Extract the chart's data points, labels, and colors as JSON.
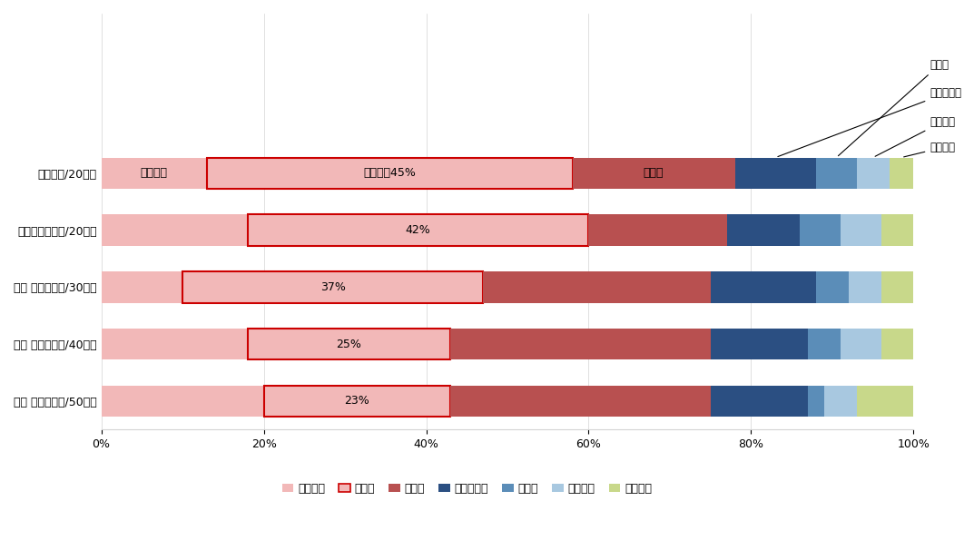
{
  "categories": [
    "新社会人/20歳代",
    "その他の社会人/20歳代",
    "その 他の社会人/30歳代",
    "その 他の社会人/40歳代",
    "その 他の社会人/50歳代"
  ],
  "segments": [
    "キッチン",
    "トイレ",
    "お風呂",
    "窓・サッシ",
    "洗面所",
    "リビング",
    "ベランダ"
  ],
  "values": [
    [
      13,
      45,
      20,
      10,
      5,
      4,
      3
    ],
    [
      18,
      42,
      17,
      9,
      5,
      5,
      4
    ],
    [
      10,
      37,
      28,
      13,
      4,
      4,
      4
    ],
    [
      18,
      25,
      32,
      12,
      4,
      5,
      4
    ],
    [
      20,
      23,
      32,
      12,
      2,
      4,
      7
    ]
  ],
  "seg_colors": [
    "#f2b8b8",
    "#f2b8b8",
    "#b85050",
    "#2b4f82",
    "#5b8db8",
    "#a8c8e0",
    "#c8d88a"
  ],
  "toilet_border": "#cc0000",
  "bar_height": 0.55,
  "xlim": [
    0,
    100
  ],
  "xticks": [
    0,
    20,
    40,
    60,
    80,
    100
  ],
  "xticklabels": [
    "0%",
    "20%",
    "40%",
    "60%",
    "80%",
    "100%"
  ],
  "legend_labels": [
    "キッチン",
    "トイレ",
    "お風呂",
    "窓・サッシ",
    "洗面所",
    "リビング",
    "ベランダ"
  ],
  "legend_colors": [
    "#f2b8b8",
    "#cc2222",
    "#b85050",
    "#2b4f82",
    "#5b8db8",
    "#a8c8e0",
    "#c8d88a"
  ],
  "bar_label_row0_kitchen": "キッチン",
  "bar_label_row0_toilet": "トイレ，45%",
  "bar_label_row0_ofuro": "お風呂",
  "toilet_labels": [
    "42%",
    "37%",
    "25%",
    "23%"
  ],
  "ann_madosasshi": "窓・サッシ",
  "ann_senmenjo": "洗面所",
  "ann_living": "リビング",
  "ann_veranda": "ベランダ"
}
